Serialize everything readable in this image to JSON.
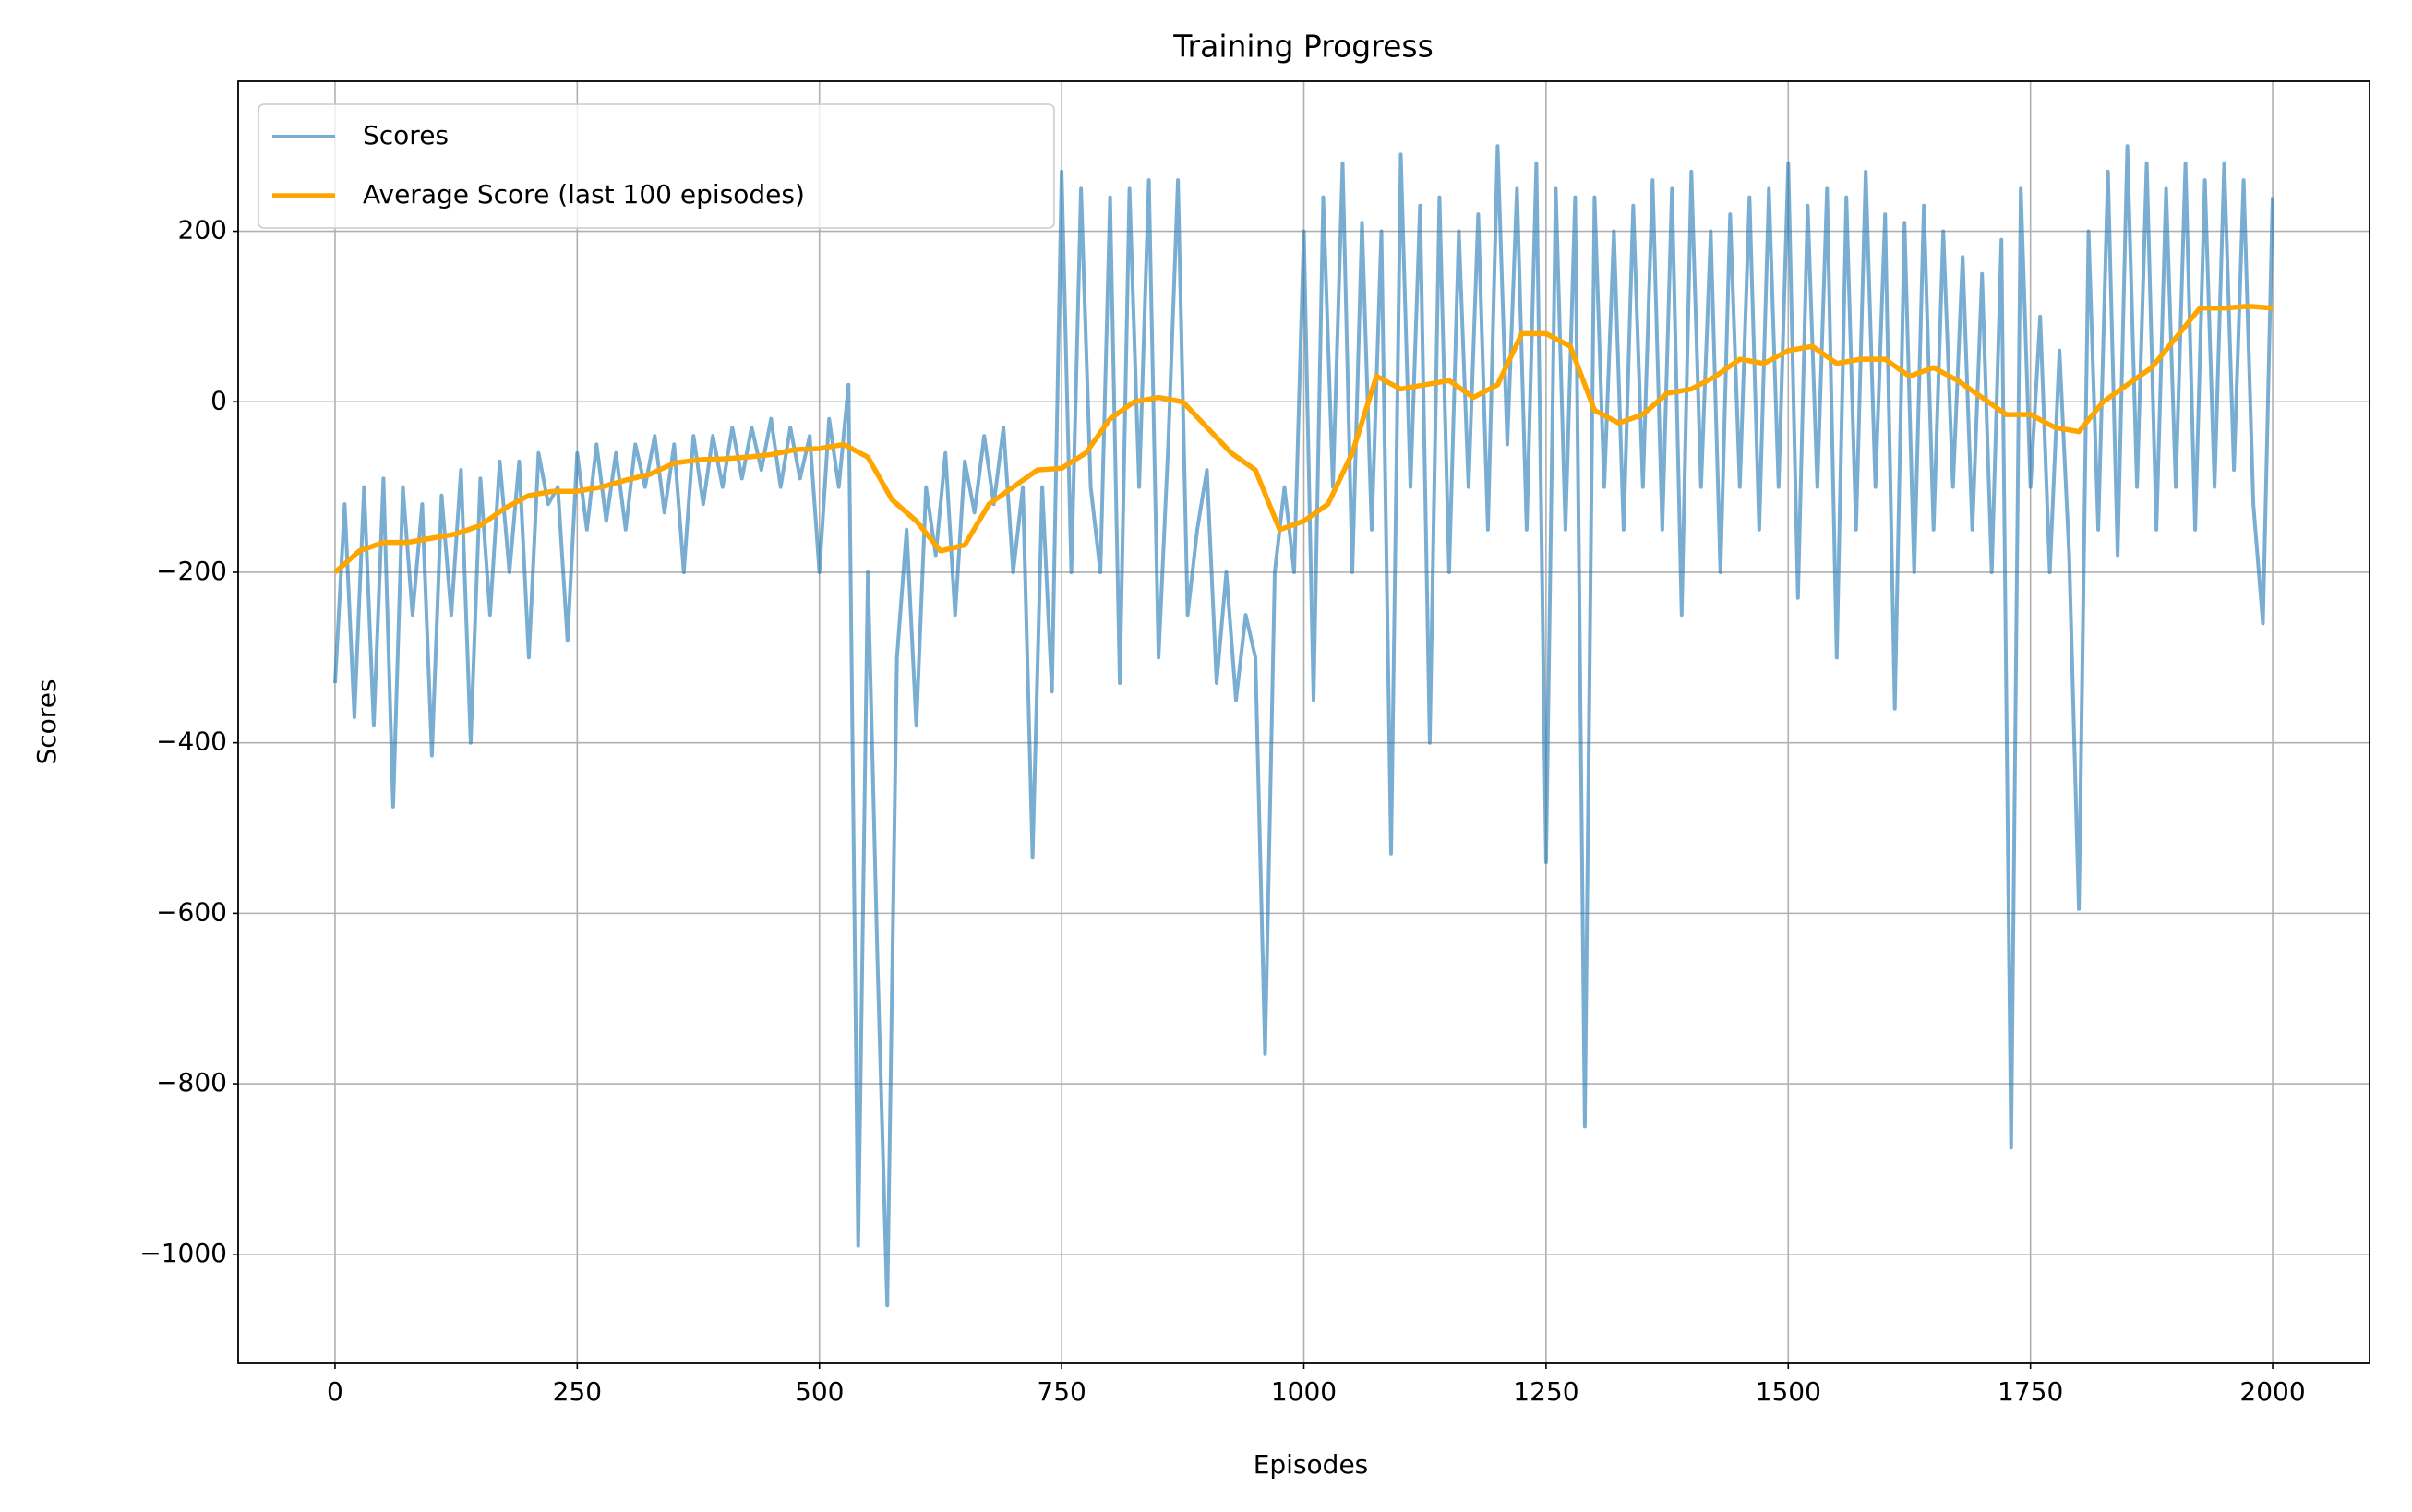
{
  "chart_data": {
    "type": "line",
    "title": "Training Progress",
    "xlabel": "Episodes",
    "ylabel": "Scores",
    "xlim": [
      -100,
      2100
    ],
    "ylim": [
      -1128,
      376
    ],
    "xticks": [
      0,
      250,
      500,
      750,
      1000,
      1250,
      1500,
      1750,
      2000
    ],
    "yticks": [
      {
        "value": -1000,
        "label": "−1000"
      },
      {
        "value": -800,
        "label": "−800"
      },
      {
        "value": -600,
        "label": "−600"
      },
      {
        "value": -400,
        "label": "−400"
      },
      {
        "value": -200,
        "label": "−200"
      },
      0,
      200
    ],
    "grid": true,
    "legend": "upper left",
    "series": [
      {
        "name": "Scores",
        "color": "#1f77b4",
        "x": [
          0,
          10,
          20,
          30,
          40,
          50,
          60,
          70,
          80,
          90,
          100,
          110,
          120,
          130,
          140,
          150,
          160,
          170,
          180,
          190,
          200,
          210,
          220,
          230,
          240,
          250,
          260,
          270,
          280,
          290,
          300,
          310,
          320,
          330,
          340,
          350,
          360,
          370,
          380,
          390,
          400,
          410,
          420,
          430,
          440,
          450,
          460,
          470,
          480,
          490,
          500,
          510,
          520,
          530,
          540,
          550,
          560,
          570,
          580,
          590,
          600,
          610,
          620,
          630,
          640,
          650,
          660,
          670,
          680,
          690,
          700,
          710,
          720,
          730,
          740,
          750,
          760,
          770,
          780,
          790,
          800,
          810,
          820,
          830,
          840,
          850,
          860,
          870,
          880,
          890,
          900,
          910,
          920,
          930,
          940,
          950,
          960,
          970,
          980,
          990,
          1000,
          1010,
          1020,
          1030,
          1040,
          1050,
          1060,
          1070,
          1080,
          1090,
          1100,
          1110,
          1120,
          1130,
          1140,
          1150,
          1160,
          1170,
          1180,
          1190,
          1200,
          1210,
          1220,
          1230,
          1240,
          1250,
          1260,
          1270,
          1280,
          1290,
          1300,
          1310,
          1320,
          1330,
          1340,
          1350,
          1360,
          1370,
          1380,
          1390,
          1400,
          1410,
          1420,
          1430,
          1440,
          1450,
          1460,
          1470,
          1480,
          1490,
          1500,
          1510,
          1520,
          1530,
          1540,
          1550,
          1560,
          1570,
          1580,
          1590,
          1600,
          1610,
          1620,
          1630,
          1640,
          1650,
          1660,
          1670,
          1680,
          1690,
          1700,
          1710,
          1720,
          1730,
          1740,
          1750,
          1760,
          1770,
          1780,
          1790,
          1800,
          1810,
          1820,
          1830,
          1840,
          1850,
          1860,
          1870,
          1880,
          1890,
          1900,
          1910,
          1920,
          1930,
          1940,
          1950,
          1960,
          1970,
          1980,
          1990,
          2000
        ],
        "values": [
          -330,
          -120,
          -370,
          -100,
          -380,
          -90,
          -475,
          -100,
          -250,
          -120,
          -415,
          -110,
          -250,
          -80,
          -400,
          -90,
          -250,
          -70,
          -200,
          -70,
          -300,
          -60,
          -120,
          -100,
          -280,
          -60,
          -150,
          -50,
          -140,
          -60,
          -150,
          -50,
          -100,
          -40,
          -130,
          -50,
          -200,
          -40,
          -120,
          -40,
          -100,
          -30,
          -90,
          -30,
          -80,
          -20,
          -100,
          -30,
          -90,
          -40,
          -200,
          -20,
          -100,
          20,
          -990,
          -200,
          -660,
          -1060,
          -300,
          -150,
          -380,
          -100,
          -180,
          -60,
          -250,
          -70,
          -130,
          -40,
          -120,
          -30,
          -200,
          -100,
          -535,
          -100,
          -340,
          270,
          -200,
          250,
          -100,
          -200,
          240,
          -330,
          250,
          -100,
          260,
          -300,
          -50,
          260,
          -250,
          -150,
          -80,
          -330,
          -200,
          -350,
          -250,
          -300,
          -765,
          -200,
          -100,
          -200,
          200,
          -350,
          240,
          -100,
          280,
          -200,
          210,
          -150,
          200,
          -530,
          290,
          -100,
          230,
          -400,
          240,
          -200,
          200,
          -100,
          220,
          -150,
          300,
          -50,
          250,
          -150,
          280,
          -540,
          250,
          -150,
          240,
          -850,
          240,
          -100,
          200,
          -150,
          230,
          -100,
          260,
          -150,
          250,
          -250,
          270,
          -100,
          200,
          -200,
          220,
          -100,
          240,
          -150,
          250,
          -100,
          280,
          -230,
          230,
          -100,
          250,
          -300,
          240,
          -150,
          270,
          -100,
          220,
          -360,
          210,
          -200,
          230,
          -150,
          200,
          -100,
          170,
          -150,
          150,
          -200,
          190,
          -875,
          250,
          -100,
          100,
          -200,
          60,
          -180,
          -595,
          200,
          -150,
          270,
          -180,
          300,
          -100,
          280,
          -150,
          250,
          -100,
          280,
          -150,
          260,
          -100,
          280,
          -80,
          260,
          -120,
          -260,
          240
        ]
      },
      {
        "name": "Average Score (last 100 episodes)",
        "color": "#ffa500",
        "x": [
          0,
          25,
          50,
          75,
          100,
          125,
          150,
          175,
          200,
          225,
          250,
          275,
          300,
          325,
          350,
          375,
          400,
          425,
          450,
          475,
          500,
          525,
          550,
          575,
          600,
          625,
          650,
          675,
          700,
          725,
          750,
          775,
          800,
          825,
          850,
          875,
          900,
          925,
          950,
          975,
          1000,
          1025,
          1050,
          1075,
          1100,
          1125,
          1150,
          1175,
          1200,
          1225,
          1250,
          1275,
          1300,
          1325,
          1350,
          1375,
          1400,
          1425,
          1450,
          1475,
          1500,
          1525,
          1550,
          1575,
          1600,
          1625,
          1650,
          1675,
          1700,
          1725,
          1750,
          1775,
          1800,
          1825,
          1850,
          1875,
          1900,
          1925,
          1950,
          1975,
          2000
        ],
        "values": [
          -200,
          -175,
          -165,
          -165,
          -160,
          -155,
          -145,
          -125,
          -110,
          -105,
          -105,
          -100,
          -92,
          -85,
          -72,
          -68,
          -67,
          -65,
          -62,
          -56,
          -55,
          -50,
          -65,
          -115,
          -140,
          -175,
          -168,
          -120,
          -100,
          -80,
          -78,
          -60,
          -20,
          0,
          5,
          0,
          -30,
          -60,
          -80,
          -150,
          -140,
          -120,
          -60,
          30,
          15,
          20,
          25,
          5,
          20,
          80,
          80,
          65,
          -10,
          -25,
          -15,
          10,
          15,
          30,
          50,
          45,
          60,
          65,
          45,
          50,
          50,
          30,
          40,
          25,
          5,
          -15,
          -15,
          -30,
          -35,
          0,
          20,
          40,
          75,
          110,
          110,
          112,
          110
        ]
      }
    ]
  }
}
